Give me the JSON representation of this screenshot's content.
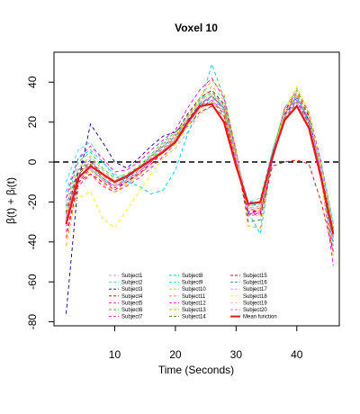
{
  "chart_data": {
    "type": "line",
    "title": "Voxel 10",
    "xlabel": "Time (Seconds)",
    "ylabel": "β(t) + βᵢ(t)",
    "xlim": [
      0,
      47
    ],
    "ylim": [
      -82,
      55
    ],
    "xticks": [
      10,
      20,
      30,
      40
    ],
    "yticks": [
      -80,
      -60,
      -40,
      -20,
      0,
      20,
      40
    ],
    "reference_line": {
      "y": 0,
      "style": "dashed",
      "color": "#000000"
    },
    "x": [
      2,
      4,
      6,
      8,
      10,
      12,
      14,
      16,
      18,
      20,
      22,
      24,
      26,
      28,
      30,
      32,
      34,
      36,
      38,
      40,
      42,
      44,
      46
    ],
    "series": [
      {
        "name": "Subject1",
        "color": "#b3b3b3",
        "values": [
          -28,
          -7,
          -4,
          -9,
          -12,
          -10,
          -6,
          -2,
          2,
          7,
          15,
          24,
          28,
          23,
          1,
          -23,
          -22,
          3,
          22,
          29,
          18,
          -4,
          -36
        ]
      },
      {
        "name": "Subject2",
        "color": "#40e0d0",
        "values": [
          -10,
          6,
          10,
          0,
          -6,
          -8,
          -4,
          3,
          8,
          12,
          20,
          28,
          32,
          26,
          3,
          -20,
          -18,
          6,
          25,
          32,
          22,
          0,
          -30
        ]
      },
      {
        "name": "Subject3",
        "color": "#00008b",
        "values": [
          -76,
          -10,
          19,
          10,
          0,
          -3,
          2,
          8,
          13,
          15,
          21,
          29,
          33,
          27,
          4,
          -22,
          -21,
          5,
          24,
          31,
          21,
          -2,
          -33
        ]
      },
      {
        "name": "Subject4",
        "color": "#8b0000",
        "values": [
          -25,
          -5,
          0,
          -6,
          -10,
          -8,
          -3,
          3,
          9,
          14,
          24,
          32,
          36,
          29,
          5,
          -25,
          -24,
          4,
          26,
          34,
          23,
          -3,
          -38
        ]
      },
      {
        "name": "Subject5",
        "color": "#ff1493",
        "values": [
          -35,
          -12,
          -6,
          -12,
          -15,
          -12,
          -8,
          -3,
          3,
          9,
          19,
          28,
          33,
          27,
          2,
          -27,
          -26,
          2,
          24,
          33,
          21,
          -6,
          -45
        ]
      },
      {
        "name": "Subject6",
        "color": "#32cd32",
        "values": [
          -20,
          0,
          5,
          -3,
          -8,
          -6,
          -2,
          4,
          10,
          15,
          23,
          31,
          35,
          28,
          3,
          -24,
          -23,
          5,
          27,
          36,
          24,
          -1,
          -31
        ]
      },
      {
        "name": "Subject7",
        "color": "#ff00ff",
        "values": [
          -18,
          2,
          8,
          2,
          -5,
          -4,
          0,
          6,
          11,
          16,
          27,
          36,
          42,
          32,
          6,
          -26,
          -25,
          4,
          27,
          35,
          25,
          0,
          -34
        ]
      },
      {
        "name": "Subject8",
        "color": "#00bfff",
        "values": [
          -15,
          2,
          6,
          0,
          -7,
          -10,
          -12,
          -16,
          -14,
          -4,
          14,
          28,
          49,
          32,
          5,
          -25,
          -36,
          2,
          25,
          33,
          20,
          -8,
          -42
        ]
      },
      {
        "name": "Subject9",
        "color": "#00fa9a",
        "values": [
          -30,
          -8,
          -2,
          -8,
          -12,
          -9,
          -5,
          1,
          7,
          12,
          22,
          30,
          34,
          27,
          2,
          -22,
          -21,
          4,
          23,
          31,
          20,
          -5,
          -37
        ]
      },
      {
        "name": "Subject10",
        "color": "#bdb76b",
        "values": [
          -23,
          -3,
          3,
          -4,
          -9,
          -7,
          -3,
          2,
          8,
          13,
          22,
          30,
          38,
          31,
          4,
          -26,
          -27,
          3,
          26,
          37,
          25,
          -2,
          -35
        ]
      },
      {
        "name": "Subject11",
        "color": "#ff7f50",
        "values": [
          -28,
          -6,
          0,
          -7,
          -11,
          -9,
          -4,
          2,
          7,
          12,
          20,
          29,
          33,
          26,
          3,
          -24,
          -23,
          3,
          25,
          34,
          22,
          -4,
          -39
        ]
      },
      {
        "name": "Subject12",
        "color": "#ff00ff",
        "values": [
          -32,
          -10,
          -3,
          -9,
          -13,
          -10,
          -6,
          0,
          5,
          10,
          19,
          27,
          31,
          25,
          1,
          -25,
          -25,
          1,
          23,
          31,
          19,
          -7,
          -52
        ]
      },
      {
        "name": "Subject13",
        "color": "#ffa500",
        "values": [
          -42,
          -11,
          -4,
          -11,
          -15,
          -11,
          -7,
          0,
          6,
          12,
          22,
          32,
          41,
          34,
          6,
          -32,
          -33,
          2,
          24,
          35,
          24,
          -9,
          -47
        ]
      },
      {
        "name": "Subject14",
        "color": "#556b2f",
        "values": [
          -26,
          -6,
          -1,
          -8,
          -12,
          -10,
          -5,
          1,
          6,
          11,
          20,
          28,
          30,
          24,
          2,
          -30,
          -29,
          1,
          22,
          30,
          19,
          -5,
          -40
        ]
      },
      {
        "name": "Subject15",
        "color": "#ff0000",
        "values": [
          -38,
          -10,
          -6,
          -10,
          -14,
          -10,
          -6,
          -1,
          5,
          10,
          18,
          25,
          28,
          23,
          0,
          -26,
          -26,
          -2,
          0,
          1,
          -1,
          -20,
          -45
        ]
      },
      {
        "name": "Subject16",
        "color": "#4682b4",
        "values": [
          -22,
          -4,
          1,
          -6,
          -10,
          -8,
          -3,
          3,
          8,
          13,
          21,
          29,
          33,
          27,
          3,
          -20,
          -20,
          4,
          25,
          32,
          22,
          -3,
          -33
        ]
      },
      {
        "name": "Subject17",
        "color": "#ee82ee",
        "values": [
          -27,
          -7,
          -3,
          -9,
          -12,
          -9,
          -5,
          0,
          6,
          11,
          19,
          27,
          31,
          25,
          1,
          -23,
          -23,
          2,
          23,
          30,
          20,
          -5,
          -38
        ]
      },
      {
        "name": "Subject18",
        "color": "#ffff00",
        "values": [
          -24,
          -18,
          -15,
          -28,
          -33,
          -24,
          -15,
          -6,
          2,
          9,
          18,
          26,
          30,
          25,
          2,
          -24,
          -24,
          3,
          26,
          38,
          25,
          -3,
          -34
        ]
      },
      {
        "name": "Subject19",
        "color": "#ffb6c1",
        "values": [
          -20,
          -3,
          2,
          -5,
          -9,
          -7,
          -3,
          3,
          9,
          14,
          22,
          30,
          34,
          28,
          4,
          -21,
          -21,
          4,
          25,
          33,
          22,
          -2,
          -32
        ]
      },
      {
        "name": "Subject20",
        "color": "#da70d6",
        "values": [
          -29,
          -8,
          -3,
          -9,
          -12,
          -9,
          -5,
          1,
          6,
          11,
          19,
          27,
          30,
          25,
          2,
          -24,
          -24,
          2,
          23,
          31,
          20,
          -5,
          -37
        ]
      },
      {
        "name": "Mean function",
        "color": "#e31a1c",
        "values": [
          -31,
          -8,
          -2,
          -6,
          -10,
          -7,
          -3,
          1,
          5,
          10,
          20,
          28,
          29,
          20,
          -2,
          -21,
          -20,
          3,
          21,
          28,
          17,
          -8,
          -36
        ]
      }
    ]
  }
}
